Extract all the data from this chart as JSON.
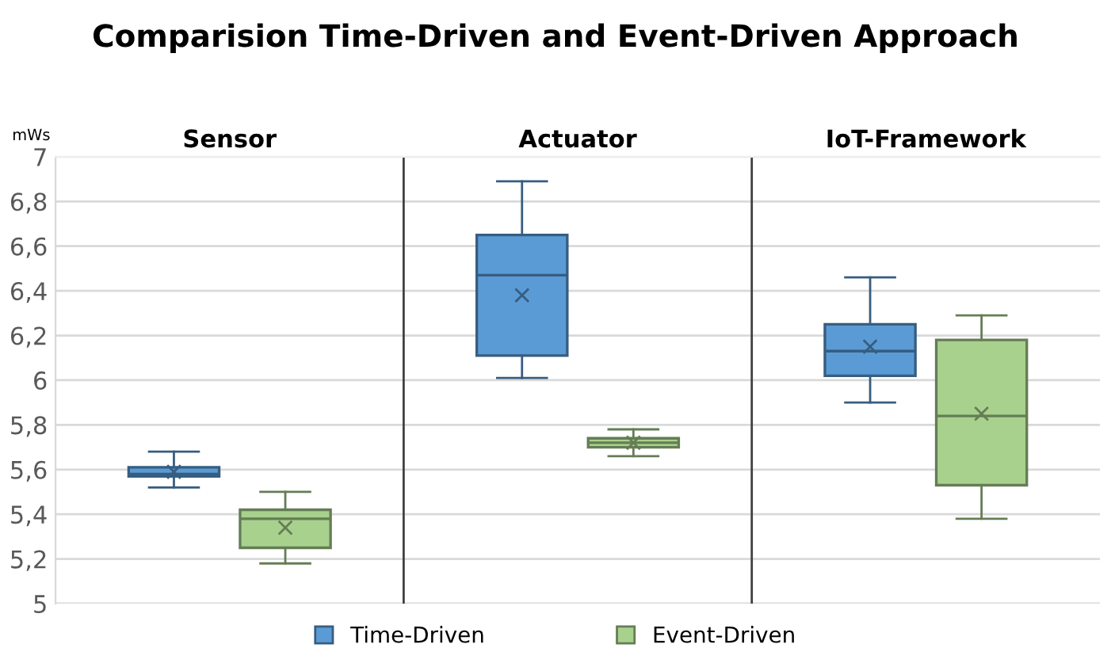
{
  "chart_data": {
    "type": "box",
    "title": "Comparision Time-Driven and Event-Driven Approach",
    "ylabel": "mWs",
    "categories": [
      "Sensor",
      "Actuator",
      "IoT-Framework"
    ],
    "series": [
      {
        "name": "Time-Driven",
        "color": "#5b9bd5",
        "boxes": [
          {
            "low": 5.52,
            "q1": 5.57,
            "median": 5.58,
            "q3": 5.61,
            "high": 5.68,
            "mean": 5.59
          },
          {
            "low": 6.01,
            "q1": 6.11,
            "median": 6.47,
            "q3": 6.65,
            "high": 6.89,
            "mean": 6.38
          },
          {
            "low": 5.9,
            "q1": 6.02,
            "median": 6.13,
            "q3": 6.25,
            "high": 6.46,
            "mean": 6.15
          }
        ]
      },
      {
        "name": "Event-Driven",
        "color": "#a9d18e",
        "boxes": [
          {
            "low": 5.18,
            "q1": 5.25,
            "median": 5.38,
            "q3": 5.42,
            "high": 5.5,
            "mean": 5.34
          },
          {
            "low": 5.66,
            "q1": 5.7,
            "median": 5.72,
            "q3": 5.74,
            "high": 5.78,
            "mean": 5.72
          },
          {
            "low": 5.38,
            "q1": 5.53,
            "median": 5.84,
            "q3": 6.18,
            "high": 6.29,
            "mean": 5.85
          }
        ]
      }
    ],
    "ylim": [
      5,
      7
    ],
    "yticks": [
      {
        "value": 5,
        "label": "5"
      },
      {
        "value": 5.2,
        "label": "5,2"
      },
      {
        "value": 5.4,
        "label": "5,4"
      },
      {
        "value": 5.6,
        "label": "5,6"
      },
      {
        "value": 5.8,
        "label": "5,8"
      },
      {
        "value": 6,
        "label": "6"
      },
      {
        "value": 6.2,
        "label": "6,2"
      },
      {
        "value": 6.4,
        "label": "6,4"
      },
      {
        "value": 6.6,
        "label": "6,6"
      },
      {
        "value": 6.8,
        "label": "6,8"
      },
      {
        "value": 7,
        "label": "7"
      }
    ],
    "grid": "y",
    "legend": "bottom",
    "marker": "cross"
  }
}
